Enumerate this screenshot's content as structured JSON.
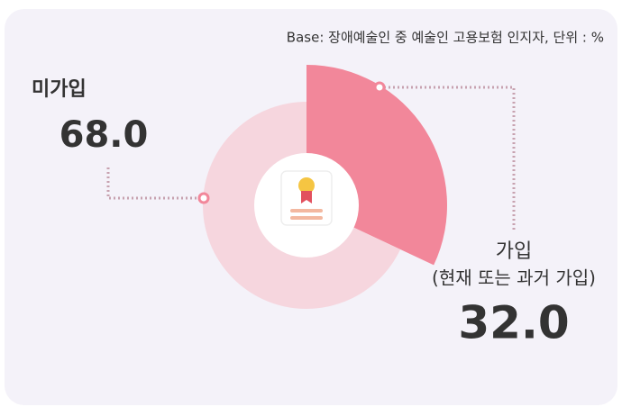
{
  "chart_data": {
    "type": "pie",
    "subtitle": "Base:  장애예술인 중 예술인 고용보험 인지자, 단위 : %",
    "categories": [
      "미가입",
      "가입"
    ],
    "annotation": "(현재 또는 과거 가입)",
    "values": [
      68.0,
      32.0
    ],
    "value_labels": [
      "68.0",
      "32.0"
    ],
    "colors": [
      "#f6d6de",
      "#f2879a"
    ],
    "label_colors": [
      "#e08aa8",
      "#c9474f"
    ]
  }
}
